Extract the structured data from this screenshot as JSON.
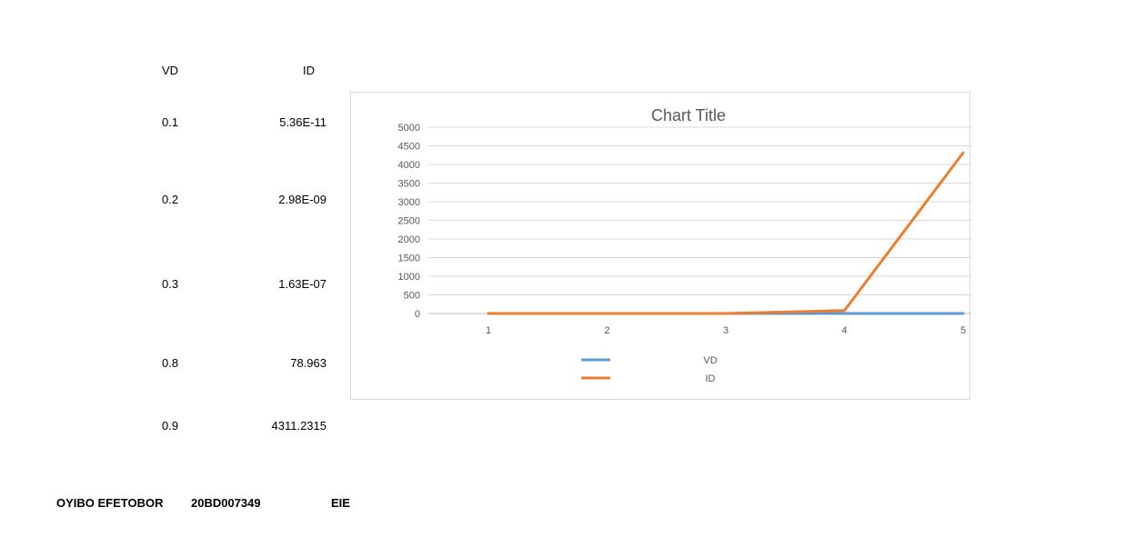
{
  "table": {
    "headers": {
      "vd": "VD",
      "id": "ID"
    },
    "rows": [
      {
        "vd": "0.1",
        "id": "5.36E-11"
      },
      {
        "vd": "0.2",
        "id": "2.98E-09"
      },
      {
        "vd": "0.3",
        "id": "1.63E-07"
      },
      {
        "vd": "0.8",
        "id": "78.963"
      },
      {
        "vd": "0.9",
        "id": "4311.2315"
      }
    ]
  },
  "footer": {
    "name": "OYIBO EFETOBOR",
    "id_number": "20BD007349",
    "dept": "EIE"
  },
  "chart_data": {
    "type": "line",
    "title": "Chart Title",
    "categories": [
      "1",
      "2",
      "3",
      "4",
      "5"
    ],
    "y_ticks": [
      "0",
      "500",
      "1000",
      "1500",
      "2000",
      "2500",
      "3000",
      "3500",
      "4000",
      "4500",
      "5000"
    ],
    "ylim": [
      0,
      5000
    ],
    "grid": true,
    "legend_position": "bottom",
    "series": [
      {
        "name": "VD",
        "color": "#5b9bd5",
        "values": [
          0.1,
          0.2,
          0.3,
          0.8,
          0.9
        ]
      },
      {
        "name": "ID",
        "color": "#ed7d31",
        "values": [
          5.36e-11,
          2.98e-09,
          1.63e-07,
          78.963,
          4311.2315
        ]
      }
    ]
  }
}
